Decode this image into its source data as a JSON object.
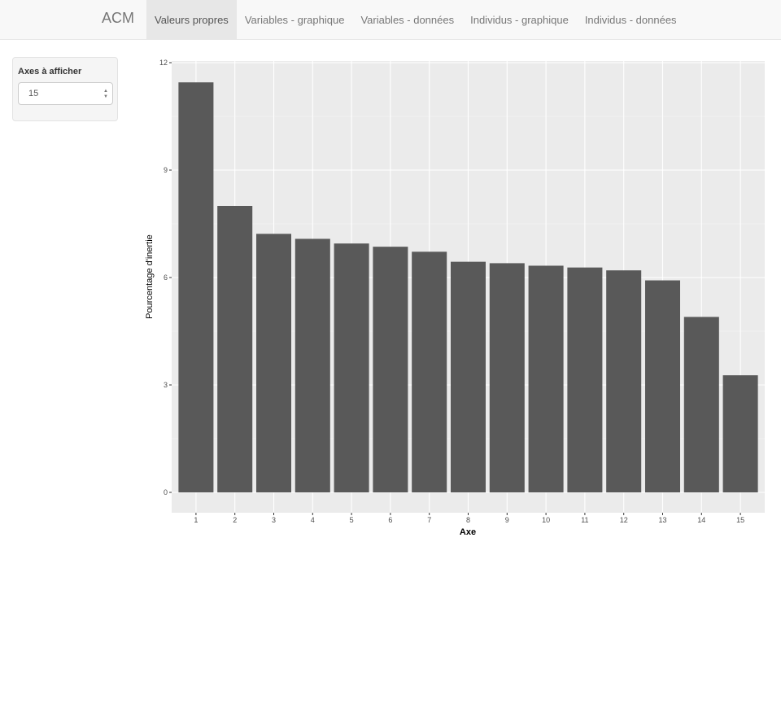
{
  "navbar": {
    "brand": "ACM",
    "tabs": [
      {
        "label": "Valeurs propres",
        "active": true
      },
      {
        "label": "Variables - graphique",
        "active": false
      },
      {
        "label": "Variables - données",
        "active": false
      },
      {
        "label": "Individus - graphique",
        "active": false
      },
      {
        "label": "Individus - données",
        "active": false
      }
    ]
  },
  "sidebar": {
    "label": "Axes à afficher",
    "input_value": "15"
  },
  "colors": {
    "bar": "#595959",
    "panel": "#ebebeb",
    "grid": "#ffffff"
  },
  "chart_data": {
    "type": "bar",
    "categories": [
      "1",
      "2",
      "3",
      "4",
      "5",
      "6",
      "7",
      "8",
      "9",
      "10",
      "11",
      "12",
      "13",
      "14",
      "15"
    ],
    "values": [
      11.45,
      8.0,
      7.22,
      7.08,
      6.95,
      6.86,
      6.72,
      6.44,
      6.4,
      6.33,
      6.28,
      6.2,
      5.92,
      4.9,
      3.27
    ],
    "xlabel": "Axe",
    "ylabel": "Pourcentage d'inertie",
    "ylim": [
      0,
      12
    ],
    "yticks": [
      "0",
      "3",
      "6",
      "9",
      "12"
    ],
    "grid": true,
    "legend": "none"
  }
}
